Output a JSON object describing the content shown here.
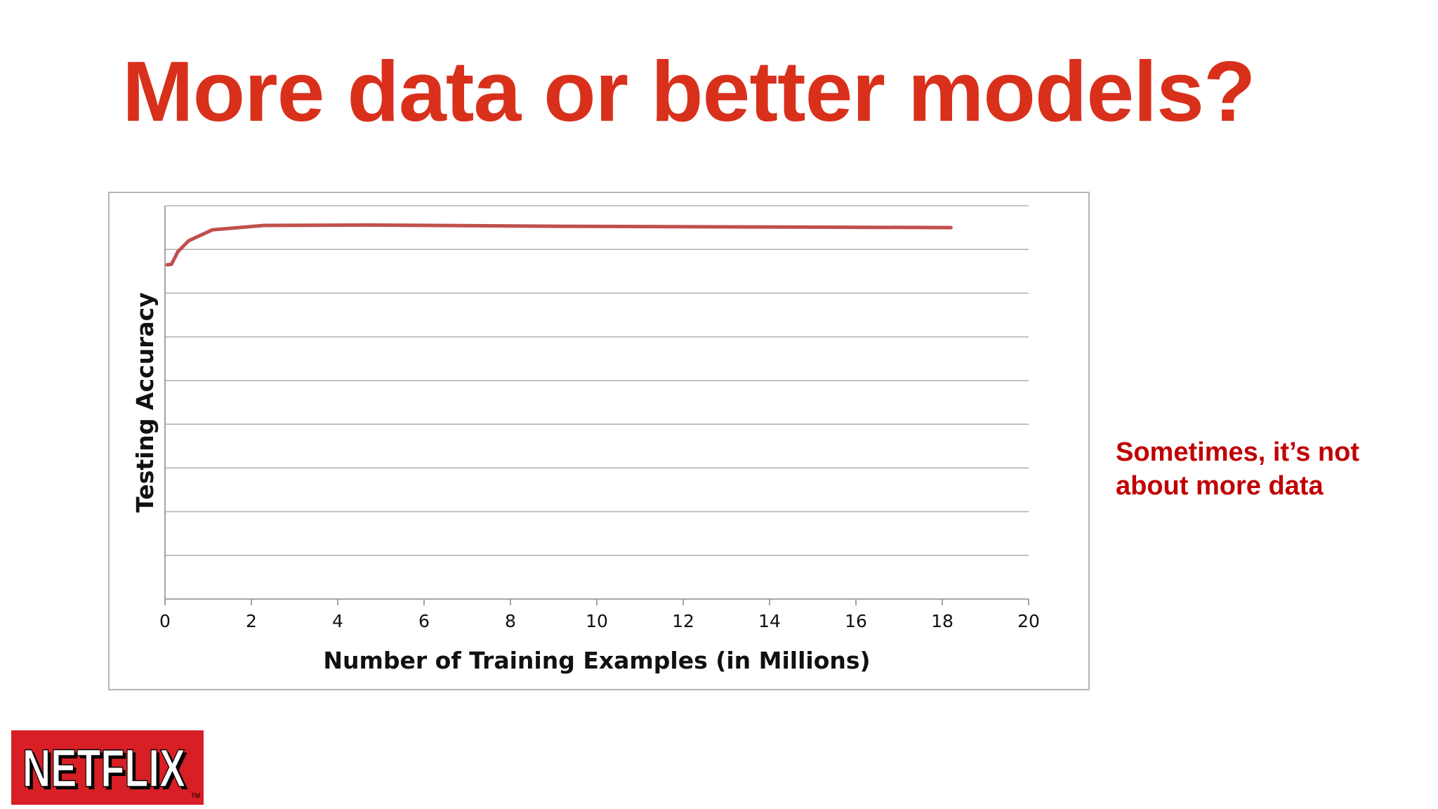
{
  "slide": {
    "title": "More data or better models?",
    "note_lines": [
      "Sometimes, it’s not",
      "about more data"
    ],
    "logo_text": "NETFLIX",
    "title_color": "#d8301b",
    "note_color": "#c00000",
    "logo_color": "#d81f26"
  },
  "chart_data": {
    "type": "line",
    "title": "",
    "xlabel": "Number of Training Examples (in Millions)",
    "ylabel": "Testing Accuracy",
    "xlim": [
      0,
      20
    ],
    "ylim": [
      0,
      9
    ],
    "x_ticks": [
      0,
      2,
      4,
      6,
      8,
      10,
      12,
      14,
      16,
      18,
      20
    ],
    "x_tick_labels": [
      "0",
      "2",
      "4",
      "6",
      "8",
      "10",
      "12",
      "14",
      "16",
      "18",
      "20"
    ],
    "y_gridlines": [
      1,
      2,
      3,
      4,
      5,
      6,
      7,
      8,
      9
    ],
    "y_tick_labels_shown": false,
    "grid": true,
    "legend": "none",
    "series_color": "#c0504d",
    "series": [
      {
        "x": [
          0.05,
          0.15,
          0.3,
          0.55,
          1.1,
          2.3,
          4.6,
          9.2,
          18.2
        ],
        "y": [
          7.65,
          7.66,
          7.95,
          8.2,
          8.45,
          8.55,
          8.56,
          8.53,
          8.5
        ]
      }
    ]
  }
}
